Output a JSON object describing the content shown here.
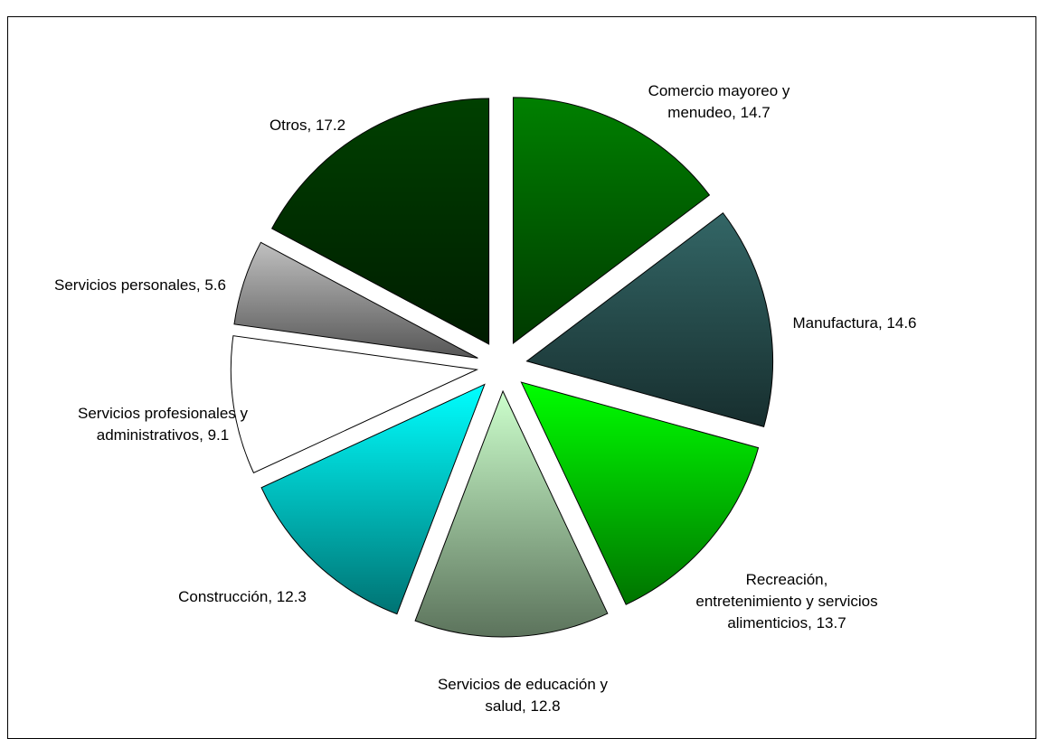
{
  "chart_data": {
    "type": "pie",
    "categories": [
      "Comercio mayoreo y menudeo",
      "Manufactura",
      "Recreación, entretenimiento y servicios alimenticios",
      "Servicios de educación y salud",
      "Construcción",
      "Servicios profesionales y administrativos",
      "Servicios personales",
      "Otros"
    ],
    "values": [
      14.7,
      14.6,
      13.7,
      12.8,
      12.3,
      9.1,
      5.6,
      17.2
    ],
    "colors": [
      "#008000",
      "#336666",
      "#00ff00",
      "#ccffcc",
      "#00ffff",
      "#ffffff",
      "#c0c0c0",
      "#004000"
    ],
    "start_angle": 0,
    "direction": "clockwise",
    "exploded": true
  }
}
